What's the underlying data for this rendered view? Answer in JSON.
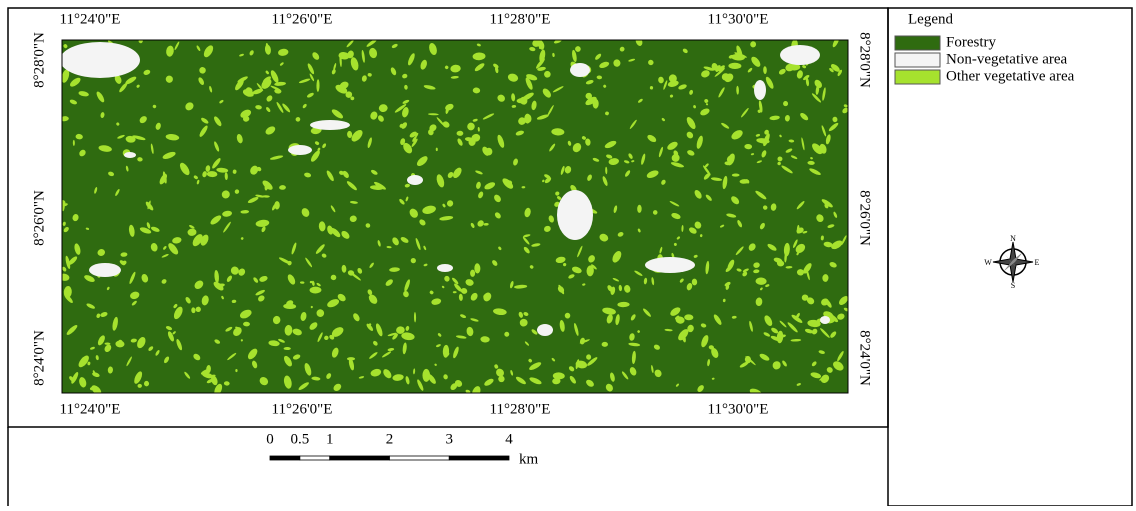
{
  "map": {
    "top_labels": [
      "11°24'0\"E",
      "11°26'0\"E",
      "11°28'0\"E",
      "11°30'0\"E"
    ],
    "bottom_labels": [
      "11°24'0\"E",
      "11°26'0\"E",
      "11°28'0\"E",
      "11°30'0\"E"
    ],
    "left_labels": [
      "8°28'0\"N",
      "8°26'0\"N",
      "8°24'0\"N"
    ],
    "right_labels": [
      "8°28'0\"N",
      "8°26'0\"N",
      "8°24'0\"N"
    ]
  },
  "legend": {
    "title": "Legend",
    "items": [
      {
        "label": "Forestry",
        "color": "#2f6b10"
      },
      {
        "label": "Non-vegetative area",
        "color": "#f4f4f4"
      },
      {
        "label": "Other vegetative area",
        "color": "#a6e22e"
      }
    ]
  },
  "compass": {
    "n": "N",
    "s": "S",
    "e": "E",
    "w": "W"
  },
  "scale_bar": {
    "labels": [
      0,
      0.5,
      1,
      2,
      3,
      4
    ],
    "unit": "km"
  }
}
